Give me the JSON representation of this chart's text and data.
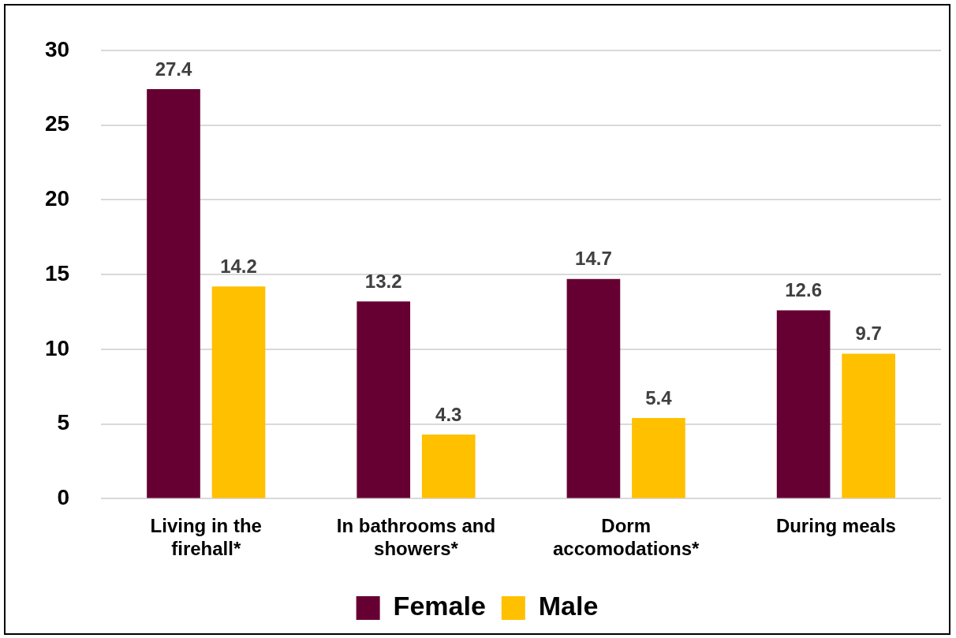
{
  "chart_data": {
    "type": "bar",
    "categories": [
      [
        "Living in the",
        "firehall*"
      ],
      [
        "In bathrooms and",
        "showers*"
      ],
      [
        "Dorm",
        "accomodations*"
      ],
      [
        "During meals"
      ]
    ],
    "series": [
      {
        "name": "Female",
        "color": "#660033",
        "values": [
          27.4,
          13.2,
          14.7,
          12.6
        ]
      },
      {
        "name": "Male",
        "color": "#ffc000",
        "values": [
          14.2,
          4.3,
          5.4,
          9.7
        ]
      }
    ],
    "ylim": [
      0,
      30
    ],
    "yticks": [
      0,
      5,
      10,
      15,
      20,
      25,
      30
    ],
    "grid": "y",
    "legend": "bottom",
    "data_labels": true
  }
}
